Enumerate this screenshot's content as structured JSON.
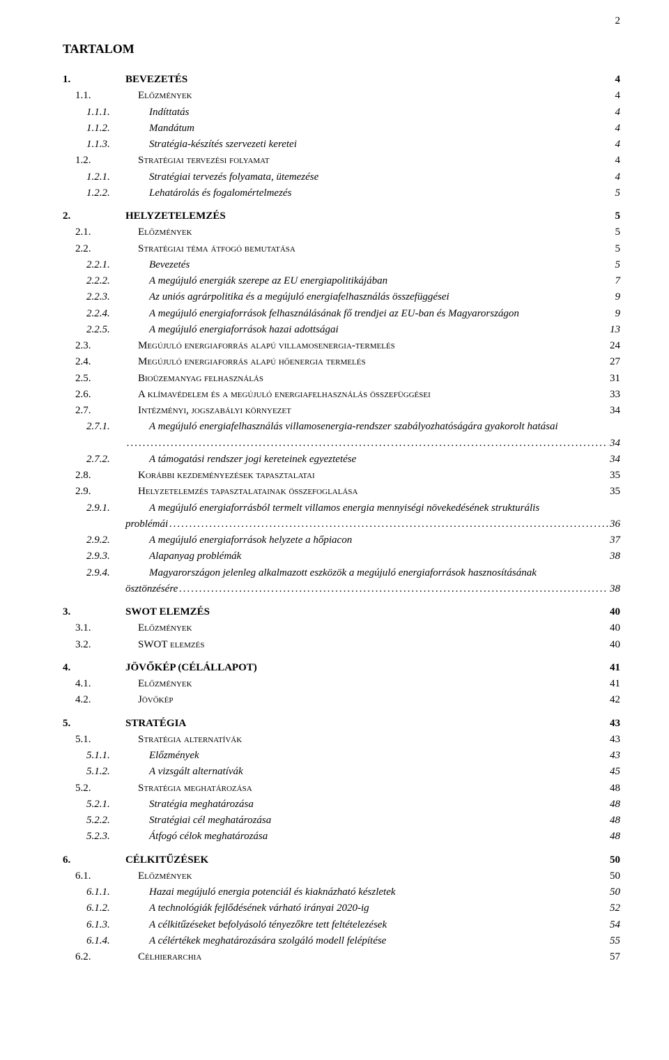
{
  "page_number": "2",
  "title": "TARTALOM",
  "toc": [
    {
      "level": 1,
      "num": "1.",
      "text": "BEVEZETÉS",
      "page": "4",
      "gap": false
    },
    {
      "level": 2,
      "num": "1.1.",
      "text": "Előzmények",
      "page": "4"
    },
    {
      "level": 3,
      "num": "1.1.1.",
      "text": "Indíttatás",
      "page": "4"
    },
    {
      "level": 3,
      "num": "1.1.2.",
      "text": "Mandátum",
      "page": "4"
    },
    {
      "level": 3,
      "num": "1.1.3.",
      "text": "Stratégia-készítés szervezeti keretei",
      "page": "4"
    },
    {
      "level": 2,
      "num": "1.2.",
      "text": "Stratégiai tervezési folyamat",
      "page": "4"
    },
    {
      "level": 3,
      "num": "1.2.1.",
      "text": "Stratégiai tervezés folyamata, ütemezése",
      "page": "4"
    },
    {
      "level": 3,
      "num": "1.2.2.",
      "text": "Lehatárolás és fogalomértelmezés",
      "page": "5"
    },
    {
      "level": 1,
      "num": "2.",
      "text": "HELYZETELEMZÉS",
      "page": "5",
      "gap": true
    },
    {
      "level": 2,
      "num": "2.1.",
      "text": "Előzmények",
      "page": "5"
    },
    {
      "level": 2,
      "num": "2.2.",
      "text": "Stratégiai téma átfogó bemutatása",
      "page": "5"
    },
    {
      "level": 3,
      "num": "2.2.1.",
      "text": "Bevezetés",
      "page": "5"
    },
    {
      "level": 3,
      "num": "2.2.2.",
      "text": "A megújuló energiák szerepe az EU energiapolitikájában",
      "page": "7"
    },
    {
      "level": 3,
      "num": "2.2.3.",
      "text": "Az uniós agrárpolitika és a megújuló energiafelhasználás összefüggései",
      "page": "9"
    },
    {
      "level": 3,
      "num": "2.2.4.",
      "text": "A megújuló energiaforrások felhasználásának fő trendjei az EU-ban és Magyarországon",
      "page": "9"
    },
    {
      "level": 3,
      "num": "2.2.5.",
      "text": "A megújuló energiaforrások hazai adottságai",
      "page": "13"
    },
    {
      "level": 2,
      "num": "2.3.",
      "text": "Megújuló energiaforrás alapú villamosenergia-termelés",
      "page": "24"
    },
    {
      "level": 2,
      "num": "2.4.",
      "text": "Megújuló energiaforrás alapú hőenergia termelés",
      "page": "27"
    },
    {
      "level": 2,
      "num": "2.5.",
      "text": "Bioüzemanyag felhasználás",
      "page": "31"
    },
    {
      "level": 2,
      "num": "2.6.",
      "text": "A klímavédelem és a megújuló energiafelhasználás összefüggései",
      "page": "33"
    },
    {
      "level": 2,
      "num": "2.7.",
      "text": "Intézményi, jogszabályi környezet",
      "page": "34"
    },
    {
      "level": 3,
      "num": "2.7.1.",
      "text": "A megújuló energiafelhasználás villamosenergia-rendszer szabályozhatóságára gyakorolt hatásai",
      "page": "34",
      "multiline": true
    },
    {
      "level": 3,
      "num": "2.7.2.",
      "text": "A támogatási rendszer jogi kereteinek egyeztetése",
      "page": "34"
    },
    {
      "level": 2,
      "num": "2.8.",
      "text": "Korábbi kezdeményezések tapasztalatai",
      "page": "35"
    },
    {
      "level": 2,
      "num": "2.9.",
      "text": "Helyzetelemzés tapasztalatainak összefoglalása",
      "page": "35"
    },
    {
      "level": 3,
      "num": "2.9.1.",
      "text": "A megújuló energiaforrásból termelt villamos energia mennyiségi növekedésének strukturális",
      "page": "36",
      "multiline": true,
      "cont": "problémái"
    },
    {
      "level": 3,
      "num": "2.9.2.",
      "text": "A megújuló energiaforrások helyzete a hőpiacon",
      "page": "37"
    },
    {
      "level": 3,
      "num": "2.9.3.",
      "text": "Alapanyag problémák",
      "page": "38"
    },
    {
      "level": 3,
      "num": "2.9.4.",
      "text": "Magyarországon jelenleg alkalmazott eszközök a megújuló energiaforrások hasznosításának",
      "page": "38",
      "multiline": true,
      "cont": "ösztönzésére"
    },
    {
      "level": 1,
      "num": "3.",
      "text": "SWOT ELEMZÉS",
      "page": "40",
      "gap": true
    },
    {
      "level": 2,
      "num": "3.1.",
      "text": "Előzmények",
      "page": "40"
    },
    {
      "level": 2,
      "num": "3.2.",
      "text": "SWOT elemzés",
      "page": "40"
    },
    {
      "level": 1,
      "num": "4.",
      "text": "JÖVŐKÉP (CÉLÁLLAPOT)",
      "page": "41",
      "gap": true
    },
    {
      "level": 2,
      "num": "4.1.",
      "text": "Előzmények",
      "page": "41"
    },
    {
      "level": 2,
      "num": "4.2.",
      "text": "Jövőkép",
      "page": "42"
    },
    {
      "level": 1,
      "num": "5.",
      "text": "STRATÉGIA",
      "page": "43",
      "gap": true
    },
    {
      "level": 2,
      "num": "5.1.",
      "text": "Stratégia alternatívák",
      "page": "43"
    },
    {
      "level": 3,
      "num": "5.1.1.",
      "text": "Előzmények",
      "page": "43"
    },
    {
      "level": 3,
      "num": "5.1.2.",
      "text": "A vizsgált alternatívák",
      "page": "45"
    },
    {
      "level": 2,
      "num": "5.2.",
      "text": "Stratégia meghatározása",
      "page": "48"
    },
    {
      "level": 3,
      "num": "5.2.1.",
      "text": "Stratégia meghatározása",
      "page": "48"
    },
    {
      "level": 3,
      "num": "5.2.2.",
      "text": "Stratégiai cél meghatározása",
      "page": "48"
    },
    {
      "level": 3,
      "num": "5.2.3.",
      "text": "Átfogó célok meghatározása",
      "page": "48"
    },
    {
      "level": 1,
      "num": "6.",
      "text": "CÉLKITŰZÉSEK",
      "page": "50",
      "gap": true
    },
    {
      "level": 2,
      "num": "6.1.",
      "text": "Előzmények",
      "page": "50"
    },
    {
      "level": 3,
      "num": "6.1.1.",
      "text": "Hazai megújuló energia potenciál és kiaknázható készletek",
      "page": "50"
    },
    {
      "level": 3,
      "num": "6.1.2.",
      "text": "A technológiák fejlődésének várható irányai 2020-ig",
      "page": "52"
    },
    {
      "level": 3,
      "num": "6.1.3.",
      "text": "A célkitűzéseket befolyásoló tényezőkre tett feltételezések",
      "page": "54"
    },
    {
      "level": 3,
      "num": "6.1.4.",
      "text": "A célértékek meghatározására szolgáló modell felépítése",
      "page": "55"
    },
    {
      "level": 2,
      "num": "6.2.",
      "text": "Célhierarchia",
      "page": "57"
    }
  ]
}
